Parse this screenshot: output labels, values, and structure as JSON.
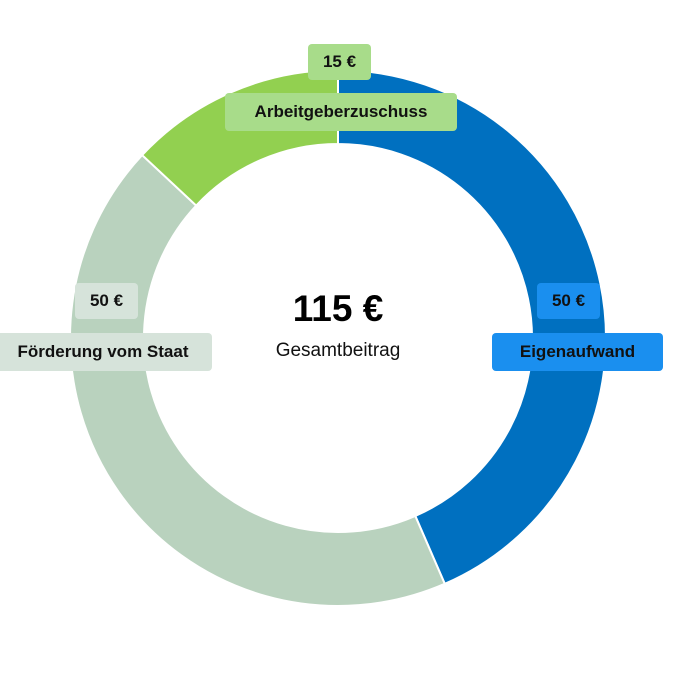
{
  "chart_data": {
    "type": "pie",
    "donut": true,
    "total_value": "115 €",
    "total_label": "Gesamtbeitrag",
    "slices": [
      {
        "label": "Eigenaufwand",
        "value": 50,
        "value_label": "50 €",
        "color": "#0070c0"
      },
      {
        "label": "Förderung vom Staat",
        "value": 50,
        "value_label": "50 €",
        "color": "#b9d2be"
      },
      {
        "label": "Arbeitgeberzuschuss",
        "value": 15,
        "value_label": "15 €",
        "color": "#92d050"
      }
    ],
    "label_colors": {
      "Eigenaufwand": "#1a8fef",
      "Förderung vom Staat": "#d6e3da",
      "Arbeitgeberzuschuss": "#a8dc8a"
    }
  }
}
